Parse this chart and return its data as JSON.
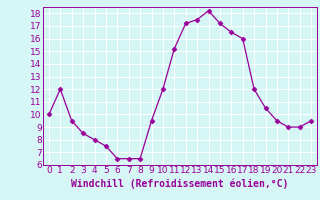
{
  "x": [
    0,
    1,
    2,
    3,
    4,
    5,
    6,
    7,
    8,
    9,
    10,
    11,
    12,
    13,
    14,
    15,
    16,
    17,
    18,
    19,
    20,
    21,
    22,
    23
  ],
  "y": [
    10,
    12,
    9.5,
    8.5,
    8,
    7.5,
    6.5,
    6.5,
    6.5,
    9.5,
    12,
    15.2,
    17.2,
    17.5,
    18.2,
    17.2,
    16.5,
    16,
    12,
    10.5,
    9.5,
    9,
    9,
    9.5
  ],
  "line_color": "#990099",
  "marker": "D",
  "marker_size": 2.5,
  "bg_color": "#d6f5f5",
  "grid_color": "#ffffff",
  "xlabel": "Windchill (Refroidissement éolien,°C)",
  "xlabel_color": "#990099",
  "xlabel_fontsize": 7,
  "ylabel_ticks": [
    6,
    7,
    8,
    9,
    10,
    11,
    12,
    13,
    14,
    15,
    16,
    17,
    18
  ],
  "xlim": [
    -0.5,
    23.5
  ],
  "ylim": [
    6,
    18.5
  ],
  "tick_fontsize": 6.5,
  "tick_color": "#990099",
  "spine_color": "#990099"
}
